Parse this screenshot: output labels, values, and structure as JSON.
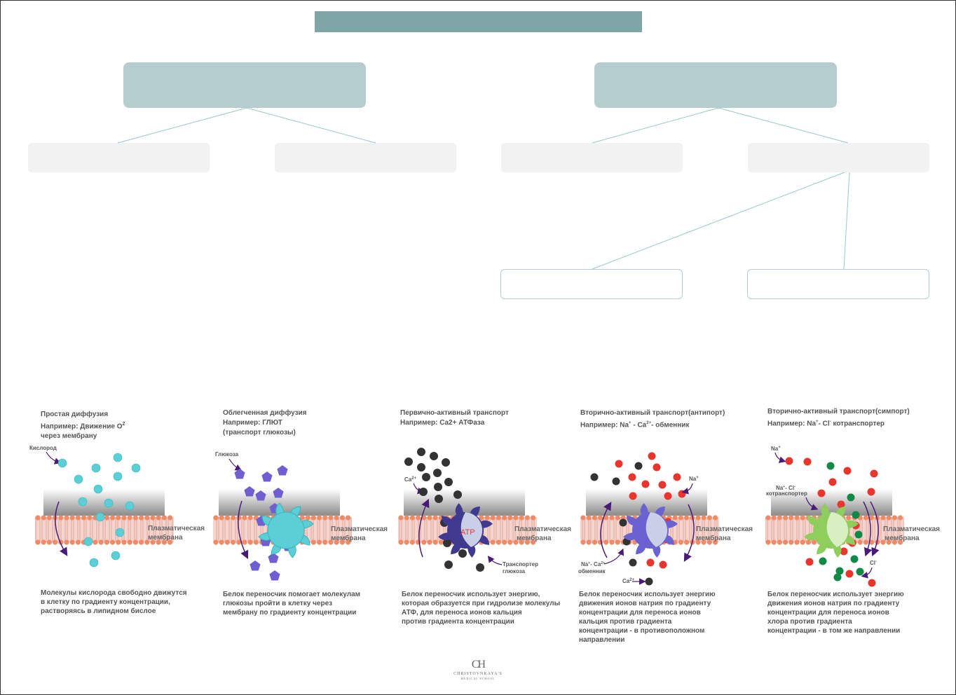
{
  "colors": {
    "title_box": "#80a5a7",
    "level1_box": "#b5cdcf",
    "level2_box": "#f2f2f2",
    "connector": "#9ec4c5",
    "oxygen": "#5ccfd6",
    "glucose": "#6f5fd0",
    "calcium": "#333333",
    "sodium": "#e8362f",
    "chloride": "#0f8a46",
    "membrane_head": "#ee8a68",
    "membrane_tail": "#e8b8b0",
    "atpase": "#3f3a8f",
    "antiporter": "#6a62d0",
    "symporter": "#8fce5c",
    "arrow": "#4a1a78"
  },
  "panels": [
    {
      "title": "Простая диффузия",
      "example": "Например: Движение O",
      "example_sup": "2",
      "example_line2": "через мембрану",
      "molecule_label": "Кислород",
      "membrane_label": [
        "Плазматическая",
        "мембрана"
      ],
      "description": [
        "Молекулы кислорода свободно движутся",
        "в клетку по градиенту концентрации,",
        "растворяясь в липидном бислое"
      ]
    },
    {
      "title": "Облегченная  диффузия",
      "example": "Например: ГЛЮТ",
      "example_line2": "(транспорт глюкозы)",
      "molecule_label": "Глюкоза",
      "membrane_label": [
        "Плазматическая",
        "мембрана"
      ],
      "description": [
        "Белок переносчик помогает молекулам",
        "глюкозы пройти в клетку через",
        "мембрану по градиенту концентрации"
      ]
    },
    {
      "title": "Первично-активный транспорт",
      "example": "Например: Ca2+ АТФаза",
      "molecule_label": "Ca",
      "molecule_sup": "2+",
      "protein_text": "ATP",
      "transporter_label": [
        "Транспортер",
        "глюкоза"
      ],
      "membrane_label": [
        "Плазматическая",
        "мембрана"
      ],
      "description": [
        "Белок переносчик использует энергию,",
        "которая образуется при гидролизе молекулы",
        "АТФ, для переноса ионов кальция",
        "против  градиента концентрации"
      ]
    },
    {
      "title": "Вторично-активный транспорт(антипорт)",
      "example": "Например: Na",
      "example_sup": "+",
      "example_mid": " - Ca",
      "example_sup2": "2+",
      "example_end": "- обменник",
      "na_label": "Na",
      "na_sup": "+",
      "exchanger_label": [
        "Na",
        "- Ca",
        "обменник"
      ],
      "ca_label": "Ca",
      "ca_sup": "2+",
      "membrane_label": [
        "Плазматическая",
        "мембрана"
      ],
      "description": [
        "Белок переносчик использует энергию",
        "движения ионов натрия по градиенту",
        "концентрации для переноса ионов",
        "кальция против градиента",
        "концентрации - в противоположном",
        "направлении"
      ]
    },
    {
      "title": "Вторично-активный транспорт(симпорт)",
      "example": "Например: Na",
      "example_sup": "+",
      "example_mid": "- Cl",
      "example_sup2": "-",
      "example_end": "  котранспортер",
      "na_label": "Na",
      "na_sup": "+",
      "cotransporter_label": [
        "Na",
        "- Cl",
        "котранспортер"
      ],
      "cl_label": "Cl",
      "cl_sup": "-",
      "membrane_label": [
        "Плазматическая",
        "мембрана"
      ],
      "description": [
        "Белок переносчик использует энергию",
        "движения ионов натрия по градиенту",
        "концентрации для переноса ионов",
        "хлора против градиента",
        "концентрации - в том же направлении"
      ]
    }
  ],
  "logo": {
    "monogram": "CH",
    "name": "CHRISTOVNKAYA'S",
    "subtitle": "MEDICAL SCHOOL"
  }
}
